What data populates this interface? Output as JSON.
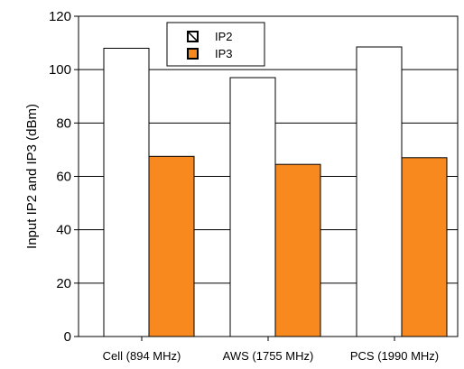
{
  "chart_data": {
    "type": "bar",
    "title": "",
    "xlabel": "",
    "ylabel": "Input IP2 and IP3 (dBm)",
    "categories": [
      "Cell (894 MHz)",
      "AWS (1755 MHz)",
      "PCS (1990 MHz)"
    ],
    "ylim": [
      0,
      120
    ],
    "yticks": [
      0,
      20,
      40,
      60,
      80,
      100,
      120
    ],
    "grid": true,
    "legend_position": "top-left inside",
    "series": [
      {
        "name": "IP2",
        "values": [
          108,
          97,
          108.5
        ],
        "fill": "#ffffff",
        "stroke": "#000000",
        "legend_color": "#2e6fdc"
      },
      {
        "name": "IP3",
        "values": [
          67.5,
          64.5,
          67
        ],
        "fill": "#f7891f",
        "stroke": "#000000",
        "legend_color": "#f7891f"
      }
    ]
  }
}
